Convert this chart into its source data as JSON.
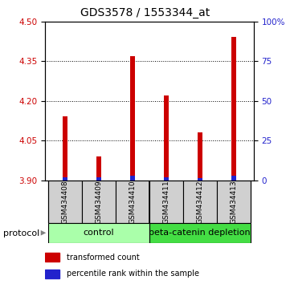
{
  "title": "GDS3578 / 1553344_at",
  "categories": [
    "GSM434408",
    "GSM434409",
    "GSM434410",
    "GSM434411",
    "GSM434412",
    "GSM434413"
  ],
  "red_values": [
    4.14,
    3.99,
    4.37,
    4.22,
    4.08,
    4.44
  ],
  "blue_values": [
    3.912,
    3.91,
    3.918,
    3.912,
    3.908,
    3.917
  ],
  "y_min": 3.9,
  "y_max": 4.5,
  "y_ticks": [
    3.9,
    4.05,
    4.2,
    4.35,
    4.5
  ],
  "right_y_ticks": [
    0,
    25,
    50,
    75,
    100
  ],
  "right_y_labels": [
    "0",
    "25",
    "50",
    "75",
    "100%"
  ],
  "control_label": "control",
  "treatment_label": "beta-catenin depletion",
  "protocol_label": "protocol",
  "legend_red": "transformed count",
  "legend_blue": "percentile rank within the sample",
  "bar_width": 0.15,
  "red_color": "#cc0000",
  "blue_color": "#2222cc",
  "control_bg": "#aaffaa",
  "treatment_bg": "#44dd44",
  "title_fontsize": 10,
  "tick_fontsize": 7.5,
  "label_fontsize": 8
}
